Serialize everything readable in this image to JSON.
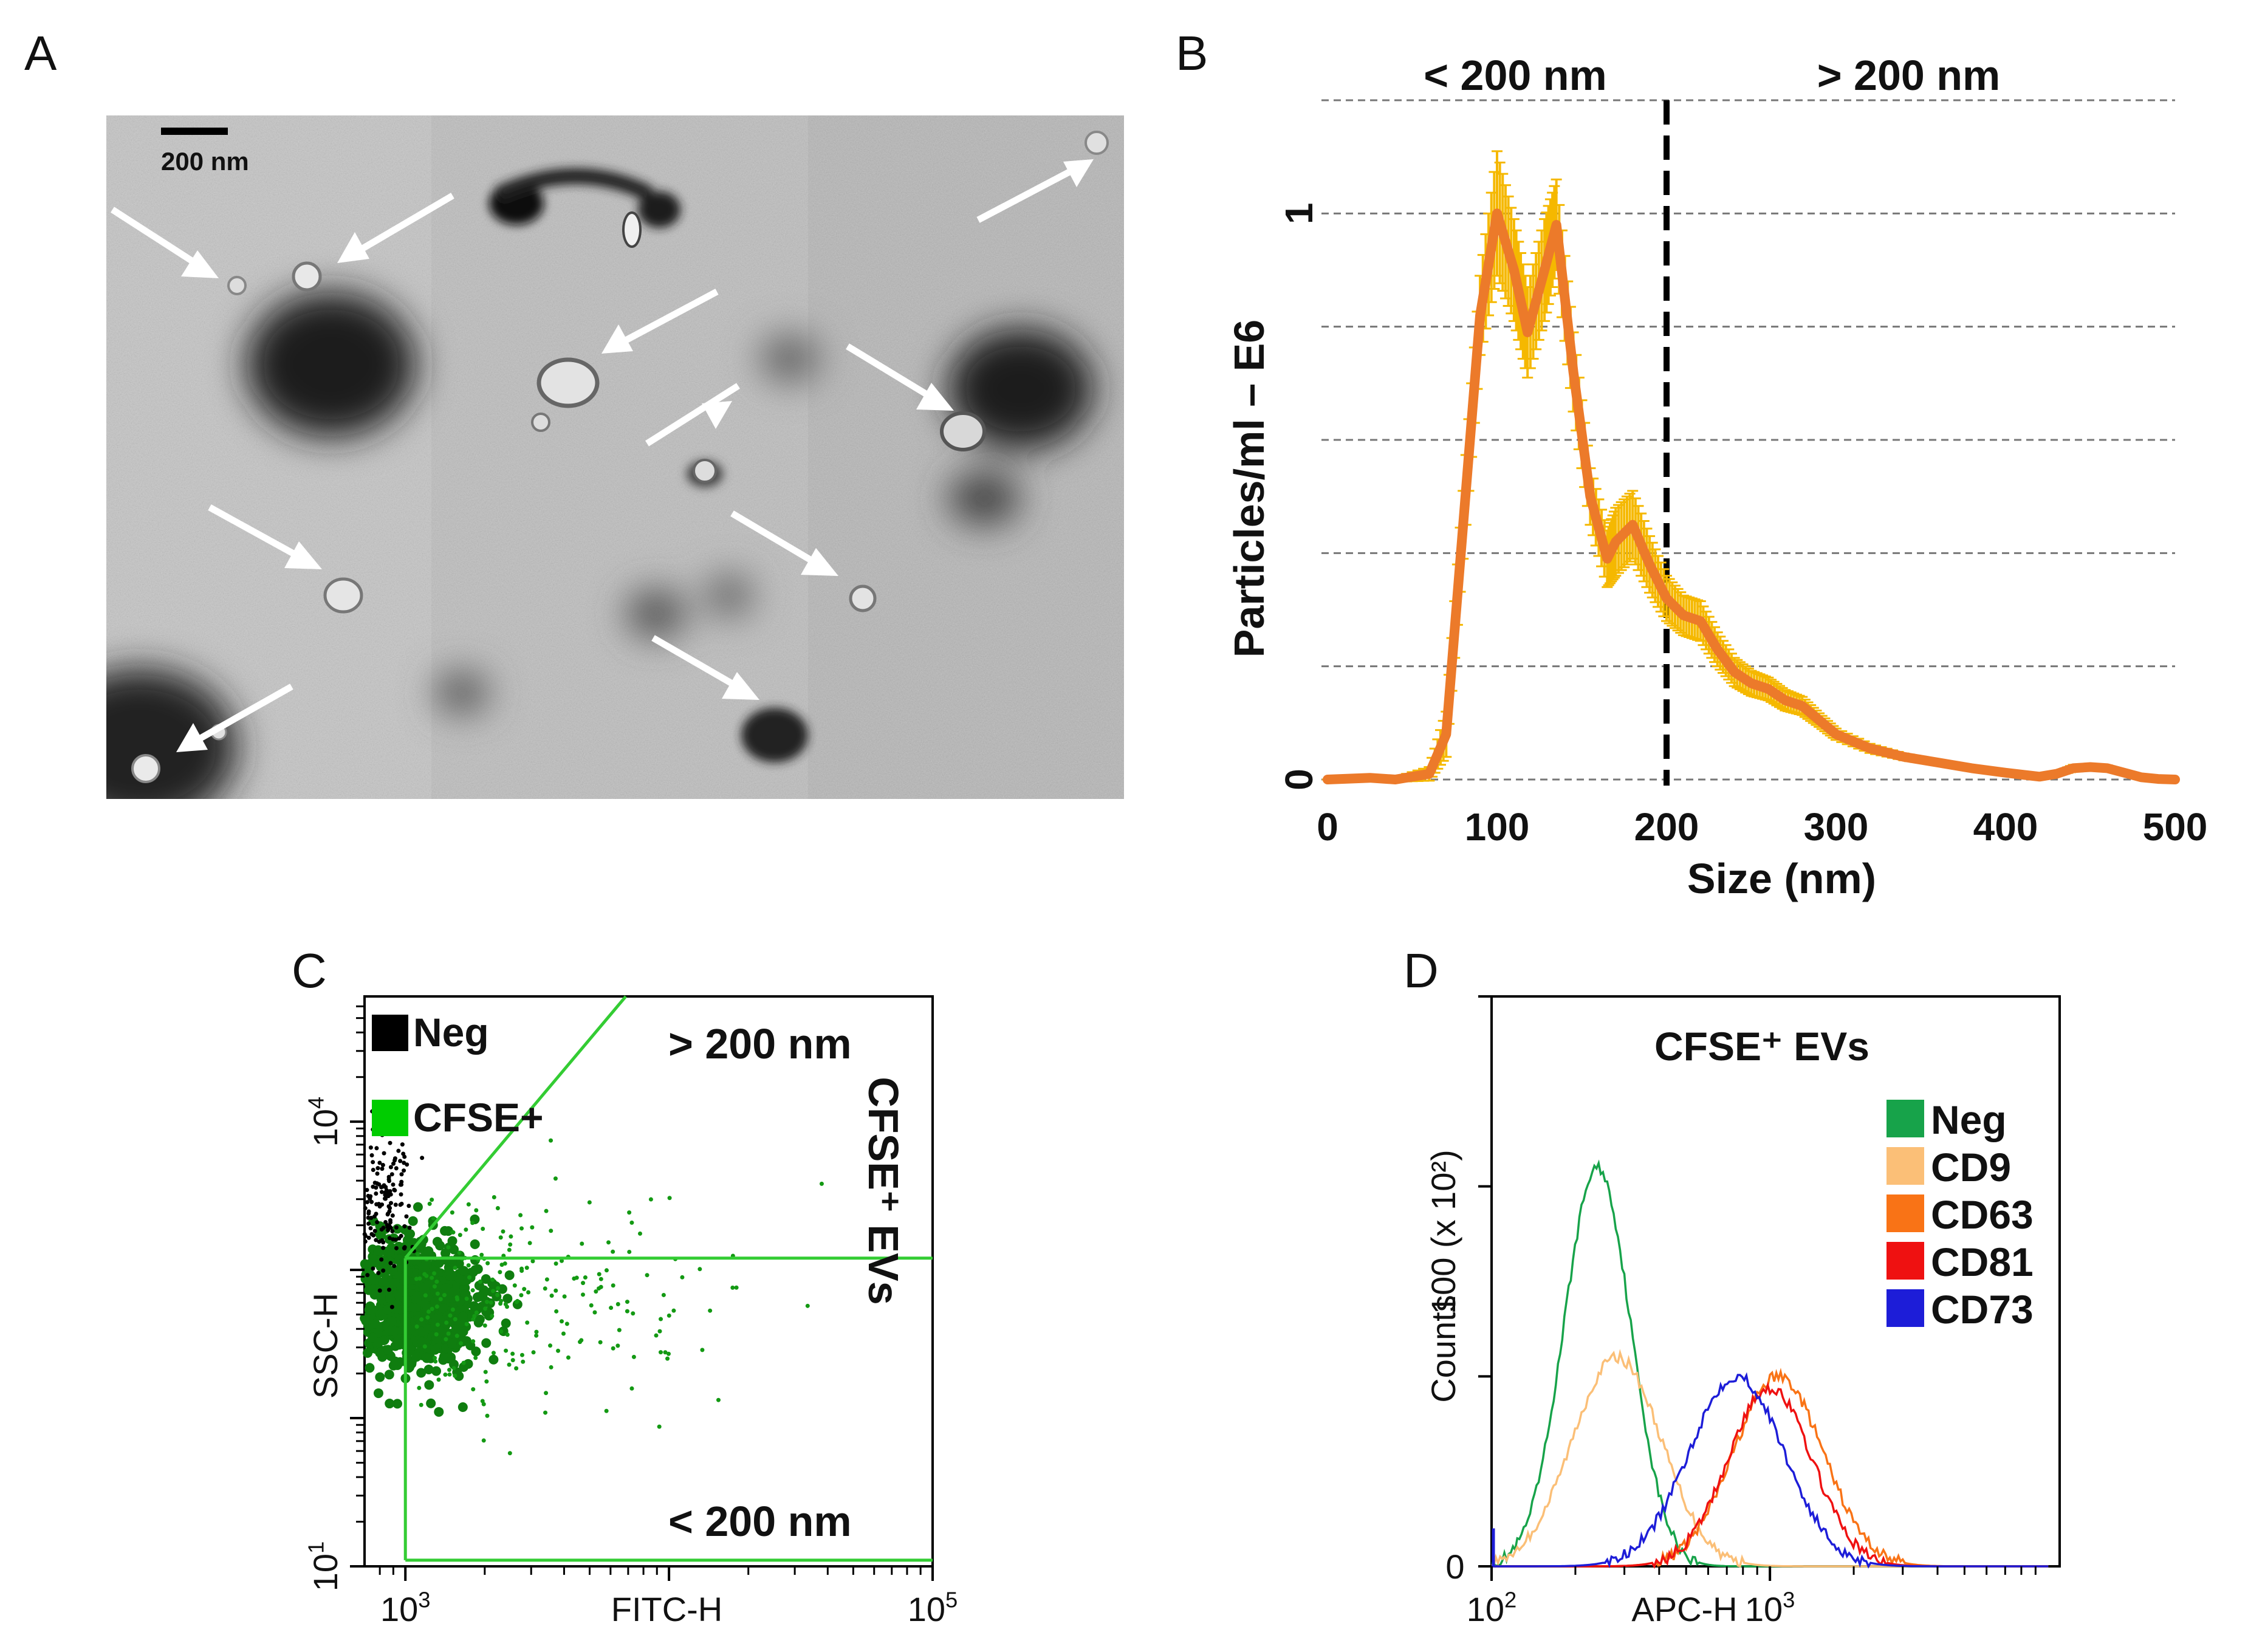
{
  "panel_labels": {
    "a": "A",
    "b": "B",
    "c": "C",
    "d": "D"
  },
  "panel_a": {
    "scale_bar_label": "200 nm",
    "arrow_count": 10
  },
  "chart_data": [
    {
      "type": "line",
      "panel": "B",
      "title": "",
      "xlabel": "Size (nm)",
      "ylabel": "Particles/ml – E6",
      "xlim": [
        0,
        500
      ],
      "ylim": [
        0,
        1.2
      ],
      "x_ticks": [
        "0",
        "100",
        "200",
        "300",
        "400",
        "500"
      ],
      "y_ticks": [
        "0",
        "1"
      ],
      "region_labels": [
        "< 200 nm",
        "> 200 nm"
      ],
      "divider_x": 200,
      "gridlines_y": [
        0.2,
        0.4,
        0.6,
        0.8,
        1.0,
        1.2
      ],
      "series": [
        {
          "name": "",
          "color": "#ec7a2a",
          "error_color": "#f5b800",
          "x": [
            0,
            25,
            40,
            60,
            70,
            80,
            90,
            100,
            110,
            118,
            128,
            135,
            145,
            155,
            165,
            170,
            180,
            190,
            200,
            210,
            220,
            230,
            240,
            250,
            260,
            270,
            280,
            290,
            300,
            320,
            340,
            360,
            380,
            400,
            420,
            430,
            440,
            450,
            460,
            470,
            480,
            490,
            500
          ],
          "y": [
            0,
            0.003,
            0,
            0.01,
            0.08,
            0.45,
            0.82,
            1.0,
            0.9,
            0.79,
            0.9,
            0.98,
            0.72,
            0.5,
            0.39,
            0.42,
            0.45,
            0.38,
            0.32,
            0.29,
            0.28,
            0.23,
            0.19,
            0.17,
            0.16,
            0.14,
            0.13,
            0.105,
            0.08,
            0.055,
            0.04,
            0.03,
            0.02,
            0.012,
            0.005,
            0.01,
            0.02,
            0.022,
            0.02,
            0.012,
            0.004,
            0.001,
            0
          ],
          "error": [
            0,
            0.005,
            0.004,
            0.012,
            0.04,
            0.06,
            0.07,
            0.11,
            0.09,
            0.08,
            0.09,
            0.08,
            0.07,
            0.05,
            0.05,
            0.06,
            0.06,
            0.05,
            0.04,
            0.035,
            0.035,
            0.03,
            0.025,
            0.022,
            0.02,
            0.018,
            0.016,
            0.012,
            0.01,
            0.008,
            0.006,
            0.005,
            0.004,
            0.003,
            0.002,
            0.003,
            0.006,
            0.006,
            0.005,
            0.003,
            0.002,
            0.001,
            0
          ]
        }
      ]
    },
    {
      "type": "scatter",
      "panel": "C",
      "title": "",
      "xlabel": "FITC-H",
      "ylabel": "SSC-H",
      "x_scale": "log",
      "y_scale": "log",
      "xlim": [
        700,
        100000
      ],
      "ylim": [
        10,
        70000
      ],
      "x_ticks": [
        {
          "base": "10",
          "exp": "3",
          "value": 1000
        },
        {
          "base": "10",
          "exp": "5",
          "value": 100000
        }
      ],
      "y_ticks": [
        {
          "base": "10",
          "exp": "1",
          "value": 10
        },
        {
          "base": "10",
          "exp": "4",
          "value": 10000
        }
      ],
      "legend": [
        {
          "label": "Neg",
          "color": "#000000"
        },
        {
          "label": "CFSE+",
          "color": "#00cc00"
        }
      ],
      "legend_position": "top-left",
      "gate_labels": [
        "> 200 nm",
        "< 200 nm",
        "CFSE⁺ EVs"
      ],
      "gate": {
        "x_threshold": 1000,
        "y_threshold": 1200,
        "color": "#33cc33"
      },
      "series": [
        {
          "name": "Neg",
          "color": "#000000",
          "x_center": 800,
          "y_center": 3000,
          "count": 180
        },
        {
          "name": "CFSE+",
          "color": "#0f7d0f",
          "x_center": 1100,
          "y_center": 600,
          "count": 900
        }
      ]
    },
    {
      "type": "line",
      "panel": "D",
      "title": "CFSE⁺ EVs",
      "xlabel": "APC-H",
      "ylabel": "Counts",
      "y_unit_label": "100 (x 10²)",
      "x_scale": "log",
      "xlim": [
        100,
        10000
      ],
      "ylim": [
        0,
        150
      ],
      "x_ticks": [
        {
          "base": "10",
          "exp": "2",
          "value": 100
        },
        {
          "base": "10",
          "exp": "3",
          "value": 1000
        }
      ],
      "y_ticks": [
        {
          "label": "0",
          "value": 0
        },
        {
          "label": "100",
          "value": 100
        }
      ],
      "legend_position": "right",
      "series": [
        {
          "name": "Neg",
          "color": "#17a34a",
          "center_log": 2.38,
          "width": 0.12,
          "peak": 105
        },
        {
          "name": "CD9",
          "color": "#fbbf77",
          "center_log": 2.45,
          "width": 0.16,
          "peak": 55
        },
        {
          "name": "CD63",
          "color": "#f97316",
          "center_log": 3.03,
          "width": 0.16,
          "peak": 50
        },
        {
          "name": "CD81",
          "color": "#ef1111",
          "center_log": 3.0,
          "width": 0.15,
          "peak": 47
        },
        {
          "name": "CD73",
          "color": "#1d1dd8",
          "center_log": 2.88,
          "width": 0.17,
          "peak": 50
        }
      ]
    }
  ]
}
